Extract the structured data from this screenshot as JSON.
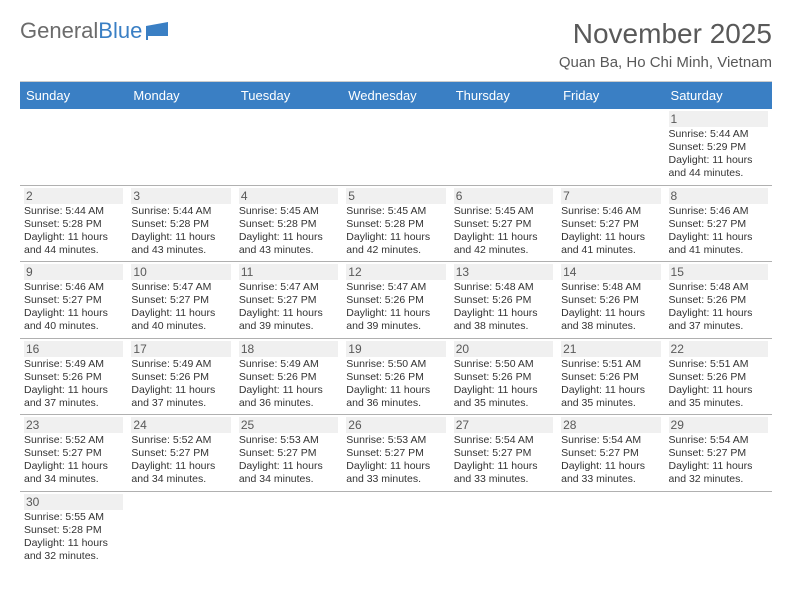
{
  "logo": {
    "text1": "General",
    "text2": "Blue"
  },
  "title": {
    "month": "November 2025",
    "location": "Quan Ba, Ho Chi Minh, Vietnam"
  },
  "colors": {
    "header_bg": "#3a7fc4",
    "header_fg": "#ffffff",
    "daynum_bg": "#f0f0f0",
    "text": "#333333",
    "muted": "#595959",
    "border": "#b0b0b0"
  },
  "weekdays": [
    "Sunday",
    "Monday",
    "Tuesday",
    "Wednesday",
    "Thursday",
    "Friday",
    "Saturday"
  ],
  "weeks": [
    [
      null,
      null,
      null,
      null,
      null,
      null,
      {
        "n": "1",
        "sr": "Sunrise: 5:44 AM",
        "ss": "Sunset: 5:29 PM",
        "dl": "Daylight: 11 hours and 44 minutes."
      }
    ],
    [
      {
        "n": "2",
        "sr": "Sunrise: 5:44 AM",
        "ss": "Sunset: 5:28 PM",
        "dl": "Daylight: 11 hours and 44 minutes."
      },
      {
        "n": "3",
        "sr": "Sunrise: 5:44 AM",
        "ss": "Sunset: 5:28 PM",
        "dl": "Daylight: 11 hours and 43 minutes."
      },
      {
        "n": "4",
        "sr": "Sunrise: 5:45 AM",
        "ss": "Sunset: 5:28 PM",
        "dl": "Daylight: 11 hours and 43 minutes."
      },
      {
        "n": "5",
        "sr": "Sunrise: 5:45 AM",
        "ss": "Sunset: 5:28 PM",
        "dl": "Daylight: 11 hours and 42 minutes."
      },
      {
        "n": "6",
        "sr": "Sunrise: 5:45 AM",
        "ss": "Sunset: 5:27 PM",
        "dl": "Daylight: 11 hours and 42 minutes."
      },
      {
        "n": "7",
        "sr": "Sunrise: 5:46 AM",
        "ss": "Sunset: 5:27 PM",
        "dl": "Daylight: 11 hours and 41 minutes."
      },
      {
        "n": "8",
        "sr": "Sunrise: 5:46 AM",
        "ss": "Sunset: 5:27 PM",
        "dl": "Daylight: 11 hours and 41 minutes."
      }
    ],
    [
      {
        "n": "9",
        "sr": "Sunrise: 5:46 AM",
        "ss": "Sunset: 5:27 PM",
        "dl": "Daylight: 11 hours and 40 minutes."
      },
      {
        "n": "10",
        "sr": "Sunrise: 5:47 AM",
        "ss": "Sunset: 5:27 PM",
        "dl": "Daylight: 11 hours and 40 minutes."
      },
      {
        "n": "11",
        "sr": "Sunrise: 5:47 AM",
        "ss": "Sunset: 5:27 PM",
        "dl": "Daylight: 11 hours and 39 minutes."
      },
      {
        "n": "12",
        "sr": "Sunrise: 5:47 AM",
        "ss": "Sunset: 5:26 PM",
        "dl": "Daylight: 11 hours and 39 minutes."
      },
      {
        "n": "13",
        "sr": "Sunrise: 5:48 AM",
        "ss": "Sunset: 5:26 PM",
        "dl": "Daylight: 11 hours and 38 minutes."
      },
      {
        "n": "14",
        "sr": "Sunrise: 5:48 AM",
        "ss": "Sunset: 5:26 PM",
        "dl": "Daylight: 11 hours and 38 minutes."
      },
      {
        "n": "15",
        "sr": "Sunrise: 5:48 AM",
        "ss": "Sunset: 5:26 PM",
        "dl": "Daylight: 11 hours and 37 minutes."
      }
    ],
    [
      {
        "n": "16",
        "sr": "Sunrise: 5:49 AM",
        "ss": "Sunset: 5:26 PM",
        "dl": "Daylight: 11 hours and 37 minutes."
      },
      {
        "n": "17",
        "sr": "Sunrise: 5:49 AM",
        "ss": "Sunset: 5:26 PM",
        "dl": "Daylight: 11 hours and 37 minutes."
      },
      {
        "n": "18",
        "sr": "Sunrise: 5:49 AM",
        "ss": "Sunset: 5:26 PM",
        "dl": "Daylight: 11 hours and 36 minutes."
      },
      {
        "n": "19",
        "sr": "Sunrise: 5:50 AM",
        "ss": "Sunset: 5:26 PM",
        "dl": "Daylight: 11 hours and 36 minutes."
      },
      {
        "n": "20",
        "sr": "Sunrise: 5:50 AM",
        "ss": "Sunset: 5:26 PM",
        "dl": "Daylight: 11 hours and 35 minutes."
      },
      {
        "n": "21",
        "sr": "Sunrise: 5:51 AM",
        "ss": "Sunset: 5:26 PM",
        "dl": "Daylight: 11 hours and 35 minutes."
      },
      {
        "n": "22",
        "sr": "Sunrise: 5:51 AM",
        "ss": "Sunset: 5:26 PM",
        "dl": "Daylight: 11 hours and 35 minutes."
      }
    ],
    [
      {
        "n": "23",
        "sr": "Sunrise: 5:52 AM",
        "ss": "Sunset: 5:27 PM",
        "dl": "Daylight: 11 hours and 34 minutes."
      },
      {
        "n": "24",
        "sr": "Sunrise: 5:52 AM",
        "ss": "Sunset: 5:27 PM",
        "dl": "Daylight: 11 hours and 34 minutes."
      },
      {
        "n": "25",
        "sr": "Sunrise: 5:53 AM",
        "ss": "Sunset: 5:27 PM",
        "dl": "Daylight: 11 hours and 34 minutes."
      },
      {
        "n": "26",
        "sr": "Sunrise: 5:53 AM",
        "ss": "Sunset: 5:27 PM",
        "dl": "Daylight: 11 hours and 33 minutes."
      },
      {
        "n": "27",
        "sr": "Sunrise: 5:54 AM",
        "ss": "Sunset: 5:27 PM",
        "dl": "Daylight: 11 hours and 33 minutes."
      },
      {
        "n": "28",
        "sr": "Sunrise: 5:54 AM",
        "ss": "Sunset: 5:27 PM",
        "dl": "Daylight: 11 hours and 33 minutes."
      },
      {
        "n": "29",
        "sr": "Sunrise: 5:54 AM",
        "ss": "Sunset: 5:27 PM",
        "dl": "Daylight: 11 hours and 32 minutes."
      }
    ],
    [
      {
        "n": "30",
        "sr": "Sunrise: 5:55 AM",
        "ss": "Sunset: 5:28 PM",
        "dl": "Daylight: 11 hours and 32 minutes."
      },
      null,
      null,
      null,
      null,
      null,
      null
    ]
  ]
}
